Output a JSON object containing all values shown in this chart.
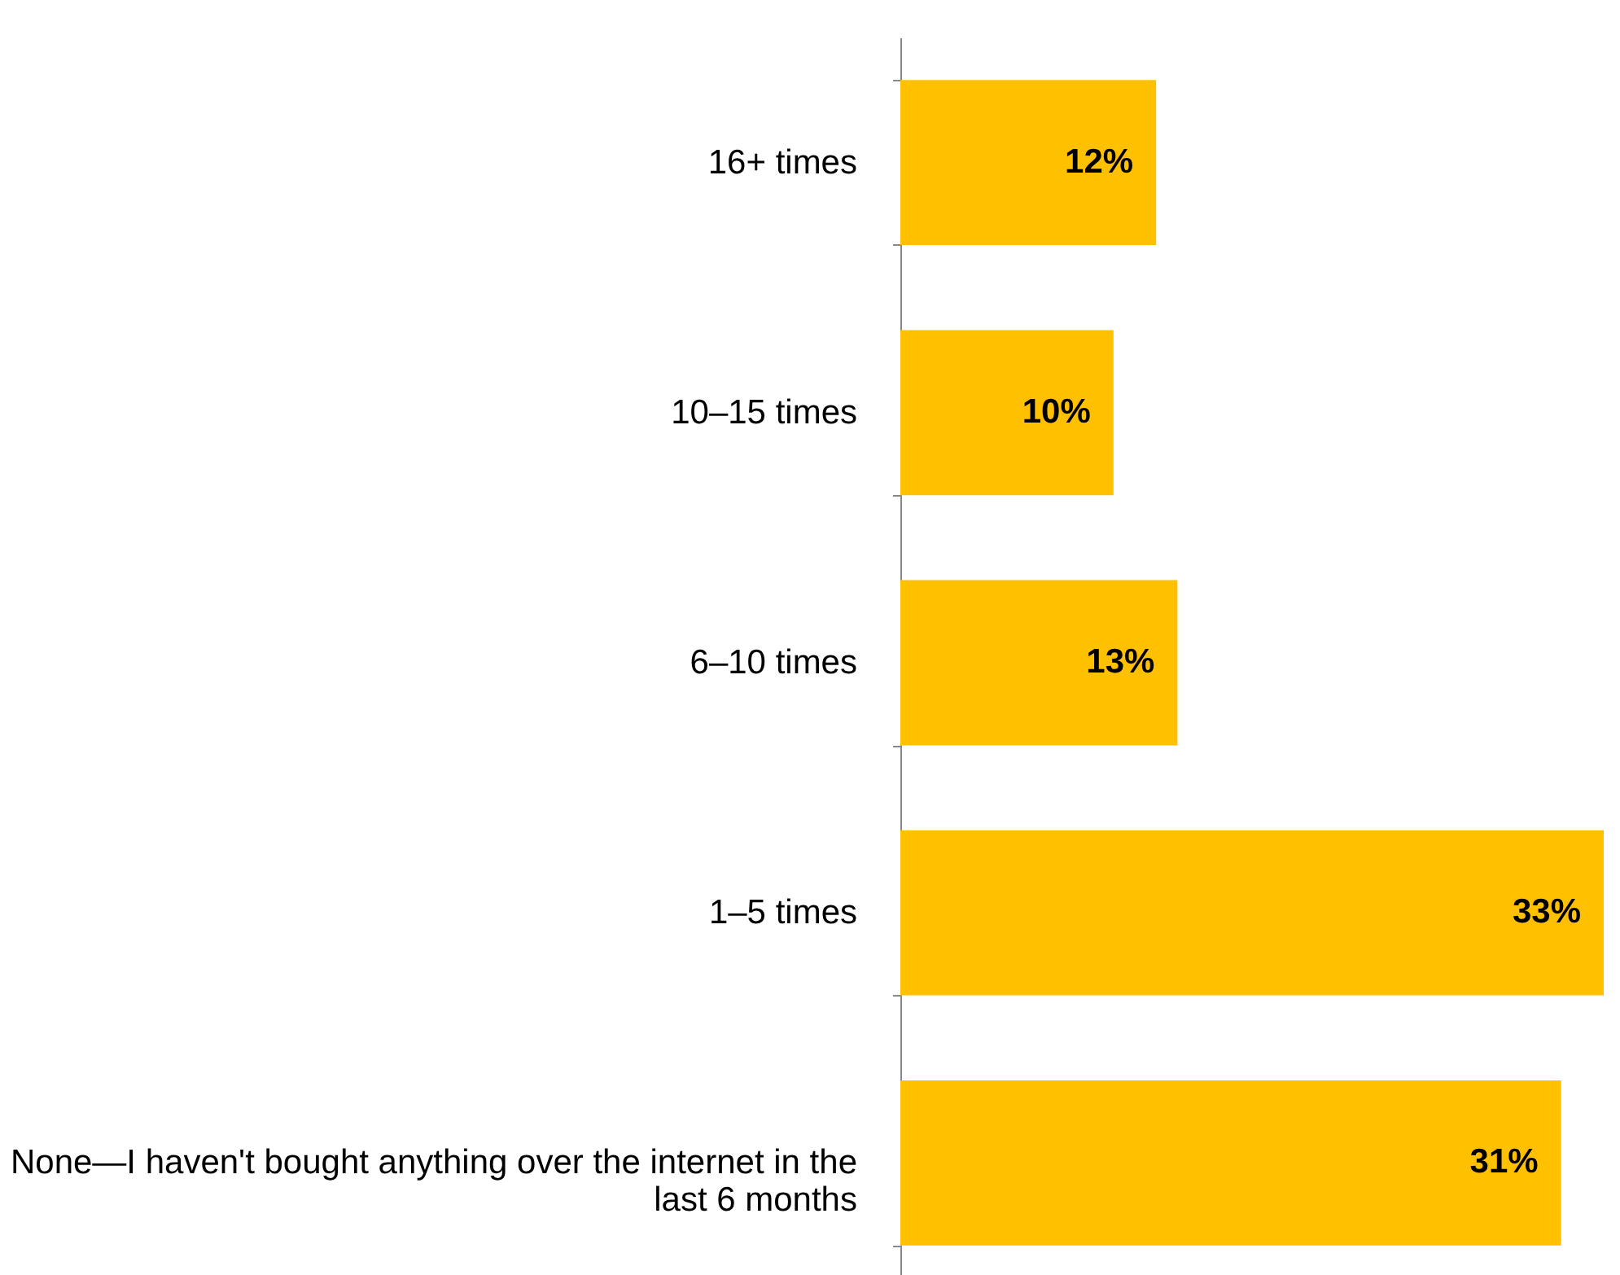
{
  "chart_data": {
    "type": "bar",
    "orientation": "horizontal",
    "categories": [
      "16+ times",
      "10–15 times",
      "6–10 times",
      "1–5 times",
      "None—I haven't bought anything over the internet in the last 6 months"
    ],
    "values": [
      12,
      10,
      13,
      33,
      31
    ],
    "color": "#ffc000",
    "data_labels": true,
    "value_labels": [
      "12%",
      "10%",
      "13%",
      "33%",
      "31%"
    ],
    "grid": false
  }
}
